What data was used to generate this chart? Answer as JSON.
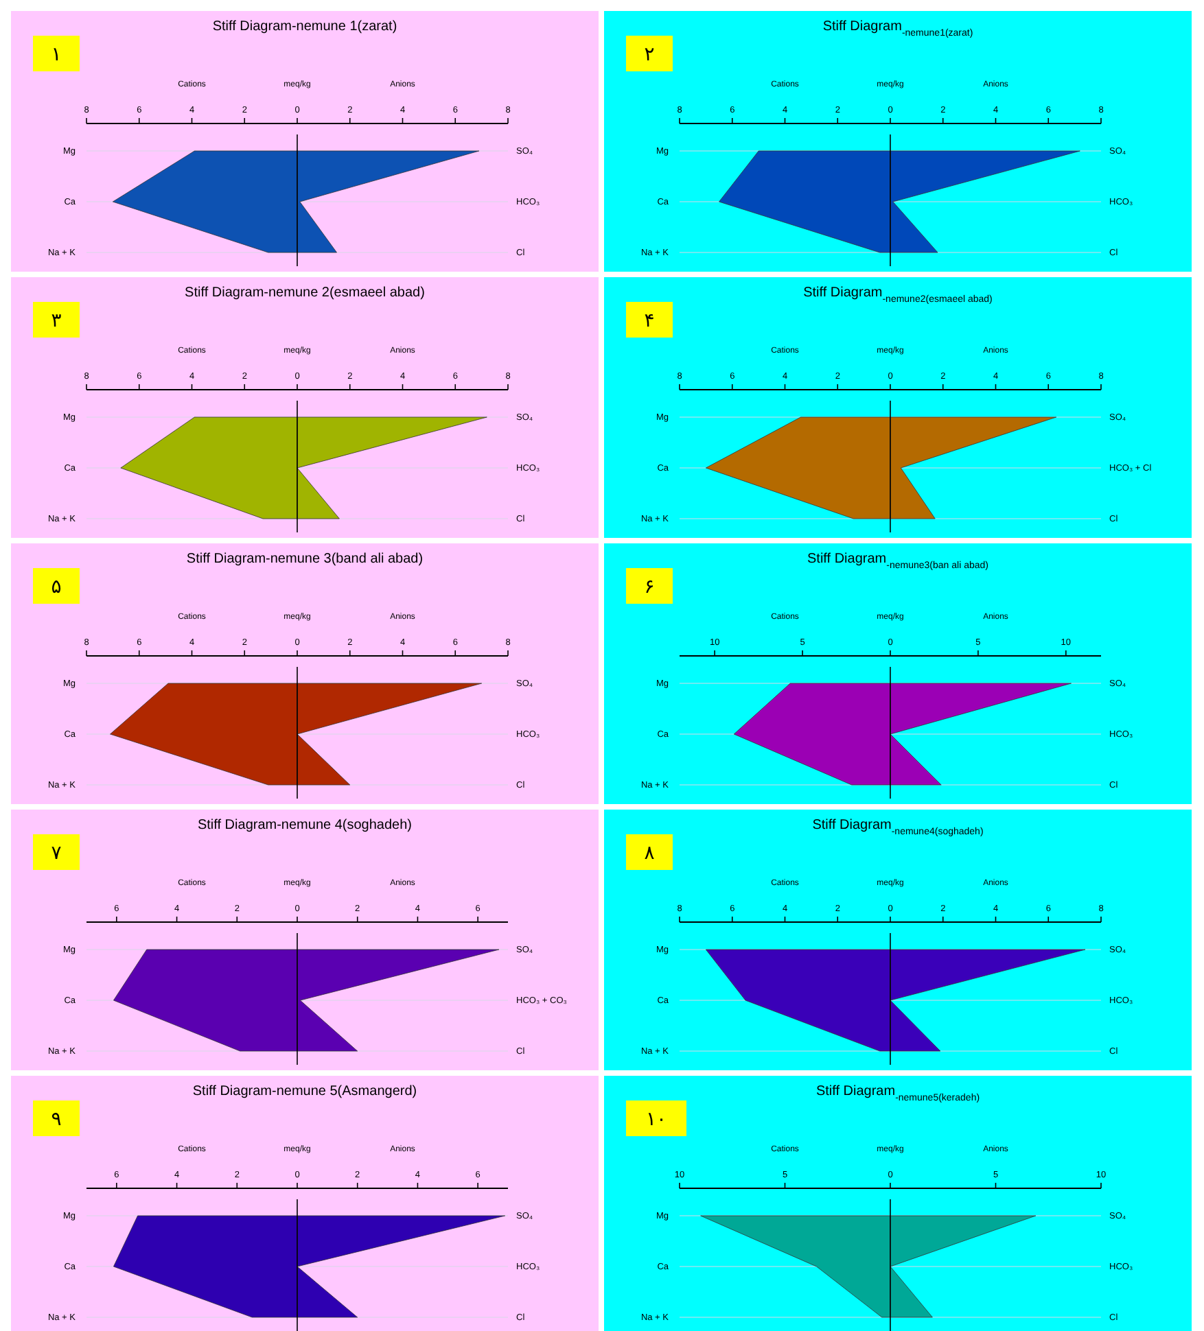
{
  "chart_data": [
    {
      "type": "area",
      "orientation": "horizontal",
      "title": "Stiff Diagram-nemune 1(zarat)",
      "xlabel": "meq/kg",
      "annotations": [
        "۱",
        "Cations",
        "Anions"
      ],
      "categories": [
        "Mg",
        "Ca",
        "Na + K"
      ],
      "y2_categories": [
        "SO₄",
        "HCO₃",
        "Cl"
      ],
      "xlim": [
        -8,
        8
      ],
      "xticks": [
        {
          "value": -8,
          "label": "8"
        },
        {
          "value": -6,
          "label": "6"
        },
        {
          "value": -4,
          "label": "4"
        },
        {
          "value": -2,
          "label": "2"
        },
        0,
        2,
        4,
        6,
        8
      ],
      "grid": "y",
      "ref_lines": [
        {
          "axis": "x",
          "value": 0
        }
      ],
      "series": [
        {
          "color": "#0d52b2",
          "values": [
            -3.9,
            -7,
            -1.1
          ]
        },
        {
          "color": "#0d52b3",
          "values": [
            6.9,
            0.1,
            1.5
          ]
        }
      ]
    },
    {
      "type": "area",
      "orientation": "horizontal",
      "title": "Stiff Diagram$_{-nemune1(zarat)}$",
      "xlabel": "meq/kg",
      "annotations": [
        "۲",
        "Cations",
        "Anions"
      ],
      "categories": [
        "Mg",
        "Ca",
        "Na + K"
      ],
      "y2_categories": [
        "SO₄",
        "HCO₃",
        "Cl"
      ],
      "xlim": [
        -8,
        8
      ],
      "xticks": [
        {
          "value": -8,
          "label": "8"
        },
        {
          "value": -6,
          "label": "6"
        },
        {
          "value": -4,
          "label": "4"
        },
        {
          "value": -2,
          "label": "2"
        },
        0,
        2,
        4,
        6,
        8
      ],
      "grid": "y",
      "ref_lines": [
        {
          "axis": "x",
          "value": 0
        }
      ],
      "series": [
        {
          "color": "#0048b8",
          "values": [
            -5,
            -6.5,
            -0.4
          ]
        },
        {
          "color": "#0048b9",
          "values": [
            7.2,
            0.1,
            1.8
          ]
        }
      ]
    },
    {
      "type": "area",
      "orientation": "horizontal",
      "title": "Stiff Diagram-nemune 2(esmaeel abad)",
      "xlabel": "meq/kg",
      "annotations": [
        "۳",
        "Cations",
        "Anions"
      ],
      "categories": [
        "Mg",
        "Ca",
        "Na + K"
      ],
      "y2_categories": [
        "SO₄",
        "HCO₃",
        "Cl"
      ],
      "xlim": [
        -8,
        8
      ],
      "xticks": [
        {
          "value": -8,
          "label": "8"
        },
        {
          "value": -6,
          "label": "6"
        },
        {
          "value": -4,
          "label": "4"
        },
        {
          "value": -2,
          "label": "2"
        },
        0,
        2,
        4,
        6,
        8
      ],
      "grid": "y",
      "ref_lines": [
        {
          "axis": "x",
          "value": 0
        }
      ],
      "series": [
        {
          "color": "#a0b400",
          "values": [
            -3.9,
            -6.7,
            -1.3
          ]
        },
        {
          "color": "#a0b401",
          "values": [
            7.2,
            0,
            1.6
          ]
        }
      ]
    },
    {
      "type": "area",
      "orientation": "horizontal",
      "title": "Stiff Diagram$_{-nemune2(esmaeel abad)}$",
      "xlabel": "meq/kg",
      "annotations": [
        "۴",
        "Cations",
        "Anions"
      ],
      "categories": [
        "Mg",
        "Ca",
        "Na + K"
      ],
      "y2_categories": [
        "SO₄",
        "HCO₃ + Cl",
        "Cl"
      ],
      "xlim": [
        -8,
        8
      ],
      "xticks": [
        {
          "value": -8,
          "label": "8"
        },
        {
          "value": -6,
          "label": "6"
        },
        {
          "value": -4,
          "label": "4"
        },
        {
          "value": -2,
          "label": "2"
        },
        0,
        2,
        4,
        6,
        8
      ],
      "grid": "y",
      "ref_lines": [
        {
          "axis": "x",
          "value": 0
        }
      ],
      "series": [
        {
          "color": "#b46a00",
          "values": [
            -3.4,
            -7,
            -1.4
          ]
        },
        {
          "color": "#b46a01",
          "values": [
            6.3,
            0.4,
            1.7
          ]
        }
      ]
    },
    {
      "type": "area",
      "orientation": "horizontal",
      "title": "Stiff Diagram-nemune 3(band ali abad)",
      "xlabel": "meq/kg",
      "annotations": [
        "۵",
        "Cations",
        "Anions"
      ],
      "categories": [
        "Mg",
        "Ca",
        "Na + K"
      ],
      "y2_categories": [
        "SO₄",
        "HCO₃",
        "Cl"
      ],
      "xlim": [
        -8,
        8
      ],
      "xticks": [
        {
          "value": -8,
          "label": "8"
        },
        {
          "value": -6,
          "label": "6"
        },
        {
          "value": -4,
          "label": "4"
        },
        {
          "value": -2,
          "label": "2"
        },
        0,
        2,
        4,
        6,
        8
      ],
      "grid": "y",
      "ref_lines": [
        {
          "axis": "x",
          "value": 0
        }
      ],
      "series": [
        {
          "color": "#b02800",
          "values": [
            -4.9,
            -7.1,
            -1.1
          ]
        },
        {
          "color": "#b02801",
          "values": [
            7,
            0,
            2
          ]
        }
      ]
    },
    {
      "type": "area",
      "orientation": "horizontal",
      "title": "Stiff Diagram$_{-nemune3(ban ali abad)}$",
      "xlabel": "meq/kg",
      "annotations": [
        "۶",
        "Cations",
        "Anions"
      ],
      "categories": [
        "Mg",
        "Ca",
        "Na + K"
      ],
      "y2_categories": [
        "SO₄",
        "HCO₃",
        "Cl"
      ],
      "xlim": [
        -12,
        12
      ],
      "xticks": [
        {
          "value": -10,
          "label": "10"
        },
        {
          "value": -5,
          "label": "5"
        },
        0,
        5,
        10
      ],
      "grid": "y",
      "ref_lines": [
        {
          "axis": "x",
          "value": 0
        }
      ],
      "series": [
        {
          "color": "#9b00b4",
          "values": [
            -5.7,
            -8.9,
            -2.2
          ]
        },
        {
          "color": "#9b00b5",
          "values": [
            10.3,
            0,
            2.9
          ]
        }
      ]
    },
    {
      "type": "area",
      "orientation": "horizontal",
      "title": "Stiff Diagram-nemune 4(soghadeh)",
      "xlabel": "meq/kg",
      "annotations": [
        "۷",
        "Cations",
        "Anions"
      ],
      "categories": [
        "Mg",
        "Ca",
        "Na + K"
      ],
      "y2_categories": [
        "SO₄",
        "HCO₃ + CO₃",
        "Cl"
      ],
      "xlim": [
        -7,
        7
      ],
      "xticks": [
        {
          "value": -6,
          "label": "6"
        },
        {
          "value": -4,
          "label": "4"
        },
        {
          "value": -2,
          "label": "2"
        },
        0,
        2,
        4,
        6
      ],
      "grid": "y",
      "ref_lines": [
        {
          "axis": "x",
          "value": 0
        }
      ],
      "series": [
        {
          "color": "#5a00b0",
          "values": [
            -5,
            -6.1,
            -1.9
          ]
        },
        {
          "color": "#5a00b1",
          "values": [
            6.7,
            0.1,
            2
          ]
        }
      ]
    },
    {
      "type": "area",
      "orientation": "horizontal",
      "title": "Stiff Diagram$_{-nemune4(soghadeh)}$",
      "xlabel": "meq/kg",
      "annotations": [
        "۸",
        "Cations",
        "Anions"
      ],
      "categories": [
        "Mg",
        "Ca",
        "Na + K"
      ],
      "y2_categories": [
        "SO₄",
        "HCO₃",
        "Cl"
      ],
      "xlim": [
        -8,
        8
      ],
      "xticks": [
        {
          "value": -8,
          "label": "8"
        },
        {
          "value": -6,
          "label": "6"
        },
        {
          "value": -4,
          "label": "4"
        },
        {
          "value": -2,
          "label": "2"
        },
        0,
        2,
        4,
        6,
        8
      ],
      "grid": "y",
      "ref_lines": [
        {
          "axis": "x",
          "value": 0
        }
      ],
      "series": [
        {
          "color": "#3a00b8",
          "values": [
            -7,
            -5.5,
            -0.4
          ]
        },
        {
          "color": "#3a00b9",
          "values": [
            7.4,
            0,
            1.9
          ]
        }
      ]
    },
    {
      "type": "area",
      "orientation": "horizontal",
      "title": "Stiff Diagram-nemune 5(Asmangerd)",
      "xlabel": "meq/kg",
      "annotations": [
        "۹",
        "Cations",
        "Anions"
      ],
      "categories": [
        "Mg",
        "Ca",
        "Na + K"
      ],
      "y2_categories": [
        "SO₄",
        "HCO₃",
        "Cl"
      ],
      "xlim": [
        -7,
        7
      ],
      "xticks": [
        {
          "value": -6,
          "label": "6"
        },
        {
          "value": -4,
          "label": "4"
        },
        {
          "value": -2,
          "label": "2"
        },
        0,
        2,
        4,
        6
      ],
      "grid": "y",
      "ref_lines": [
        {
          "axis": "x",
          "value": 0
        }
      ],
      "series": [
        {
          "color": "#2e00b0",
          "values": [
            -5.3,
            -6.1,
            -1.5
          ]
        },
        {
          "color": "#2e00b1",
          "values": [
            6.9,
            0,
            2
          ]
        }
      ]
    },
    {
      "type": "area",
      "orientation": "horizontal",
      "title": "Stiff Diagram$_{-nemune5(keradeh)}$",
      "xlabel": "meq/kg",
      "annotations": [
        "۱۰",
        "Cations",
        "Anions"
      ],
      "categories": [
        "Mg",
        "Ca",
        "Na + K"
      ],
      "y2_categories": [
        "SO₄",
        "HCO₃",
        "Cl"
      ],
      "xlim": [
        -10,
        10
      ],
      "xticks": [
        {
          "value": -10,
          "label": "10"
        },
        {
          "value": -5,
          "label": "5"
        },
        0,
        5,
        10
      ],
      "grid": "y",
      "ref_lines": [
        {
          "axis": "x",
          "value": 0
        }
      ],
      "series": [
        {
          "color": "#00a896",
          "values": [
            -9,
            -3.5,
            -0.4
          ]
        },
        {
          "color": "#00a897",
          "values": [
            6.9,
            0,
            2
          ]
        }
      ]
    }
  ]
}
